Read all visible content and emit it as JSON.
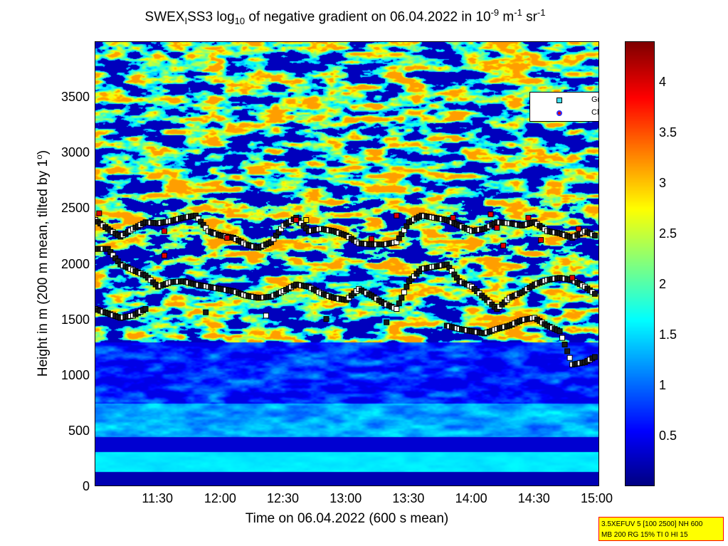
{
  "title": {
    "prefix": "SWEX",
    "sub1": "I",
    "mid": "SS3 log",
    "sub2": "10",
    "rest": " of negative gradient on 06.04.2022 in 10",
    "sup1": "-9",
    "unit": " m",
    "sup2": "-1",
    "unit2": " sr",
    "sup3": "-1"
  },
  "ylabel": {
    "main": "Height in m (200 m mean, tilted by 1",
    "deg": "o",
    "end": ")"
  },
  "xlabel": "Time on 06.04.2022 (600 s mean)",
  "legend": {
    "items": [
      {
        "label": "Gradient local minimum",
        "marker": "square",
        "color": "#40e0f0"
      },
      {
        "label": "Cloud",
        "marker": "circle",
        "color": "#e00000"
      }
    ]
  },
  "info": {
    "line1": "3.5XEFUV 5 [100 2500] NH 600",
    "line2": "MB 200 RG 15% TI 0 HI 15"
  },
  "chart_data": {
    "type": "heatmap",
    "colormap": "jet",
    "x_ticks": [
      "11:30",
      "12:00",
      "12:30",
      "13:00",
      "13:30",
      "14:00",
      "14:30",
      "15:00"
    ],
    "x_tick_hours": [
      11.5,
      12.0,
      12.5,
      13.0,
      13.5,
      14.0,
      14.5,
      15.0
    ],
    "xlim_hours": [
      11.0,
      15.02
    ],
    "y_ticks": [
      "0",
      "500",
      "1000",
      "1500",
      "2000",
      "2500",
      "3000",
      "3500"
    ],
    "y_tick_values": [
      0,
      500,
      1000,
      1500,
      2000,
      2500,
      3000,
      3500
    ],
    "ylim": [
      0,
      4000
    ],
    "colorbar_ticks": [
      "0.5",
      "1",
      "1.5",
      "2",
      "2.5",
      "3",
      "3.5",
      "4"
    ],
    "colorbar_tick_values": [
      0.5,
      1,
      1.5,
      2,
      2.5,
      3,
      3.5,
      4
    ],
    "clim": [
      0,
      4.4
    ],
    "gradient_minimum_tracks": [
      {
        "t": [
          11.0,
          11.1,
          11.2,
          11.3,
          11.4,
          11.5,
          11.6,
          11.7,
          11.8,
          11.9,
          12.0,
          12.1,
          12.2,
          12.3,
          12.4,
          12.5,
          12.6,
          12.7,
          12.8,
          12.9,
          13.0,
          13.1,
          13.2,
          13.3,
          13.4,
          13.5,
          13.6,
          13.7,
          13.8,
          13.9,
          14.0,
          14.1,
          14.2,
          14.3,
          14.4,
          14.5,
          14.6,
          14.7,
          14.8,
          14.9,
          15.0
        ],
        "h": [
          2400,
          2320,
          2250,
          2320,
          2380,
          2370,
          2390,
          2420,
          2440,
          2300,
          2260,
          2240,
          2180,
          2150,
          2200,
          2350,
          2420,
          2300,
          2320,
          2300,
          2260,
          2190,
          2180,
          2180,
          2200,
          2380,
          2440,
          2420,
          2400,
          2350,
          2300,
          2320,
          2380,
          2370,
          2350,
          2380,
          2300,
          2280,
          2240,
          2300,
          2250
        ]
      },
      {
        "t": [
          11.0,
          11.1,
          11.2,
          11.3,
          11.4,
          11.5,
          11.6,
          11.7,
          11.8,
          11.9,
          12.0,
          12.1,
          12.2,
          12.3,
          12.4,
          12.5,
          12.6,
          12.7,
          12.8,
          12.9,
          13.0,
          13.1,
          13.2,
          13.3,
          13.4,
          13.5,
          13.6,
          13.7,
          13.8,
          13.9,
          14.0,
          14.1,
          14.2,
          14.3,
          14.4,
          14.5,
          14.6,
          14.7,
          14.8,
          14.9,
          15.0
        ],
        "h": [
          2140,
          2140,
          2000,
          1950,
          1900,
          1800,
          1840,
          1850,
          1820,
          1800,
          1780,
          1760,
          1720,
          1700,
          1710,
          1760,
          1820,
          1800,
          1740,
          1700,
          1680,
          1780,
          1720,
          1650,
          1600,
          1850,
          1960,
          1980,
          2000,
          1850,
          1800,
          1700,
          1600,
          1700,
          1750,
          1820,
          1860,
          1880,
          1860,
          1800,
          1720
        ]
      },
      {
        "t": [
          11.0,
          11.1,
          11.2,
          11.3,
          11.4,
          13.8,
          13.9,
          14.0,
          14.1,
          14.2,
          14.3,
          14.4,
          14.5,
          14.6,
          14.7,
          14.8,
          14.9,
          15.0
        ],
        "h": [
          1600,
          1560,
          1520,
          1540,
          1600,
          1450,
          1420,
          1400,
          1380,
          1420,
          1450,
          1500,
          1520,
          1450,
          1400,
          1100,
          1120,
          1180
        ]
      }
    ],
    "cloud_points": [
      {
        "t": 11.03,
        "h": 2460
      },
      {
        "t": 11.55,
        "h": 2300
      },
      {
        "t": 11.55,
        "h": 2080
      },
      {
        "t": 12.05,
        "h": 2240
      },
      {
        "t": 12.6,
        "h": 2400
      },
      {
        "t": 13.2,
        "h": 2230
      },
      {
        "t": 13.4,
        "h": 2440
      },
      {
        "t": 13.85,
        "h": 2420
      },
      {
        "t": 14.15,
        "h": 2450
      },
      {
        "t": 14.2,
        "h": 2330
      },
      {
        "t": 14.25,
        "h": 2170
      },
      {
        "t": 14.45,
        "h": 2420
      },
      {
        "t": 14.55,
        "h": 2220
      },
      {
        "t": 14.85,
        "h": 2320
      },
      {
        "t": 14.8,
        "h": 1880
      }
    ],
    "yellow_points": [
      {
        "t": 12.68,
        "h": 2400
      }
    ]
  }
}
